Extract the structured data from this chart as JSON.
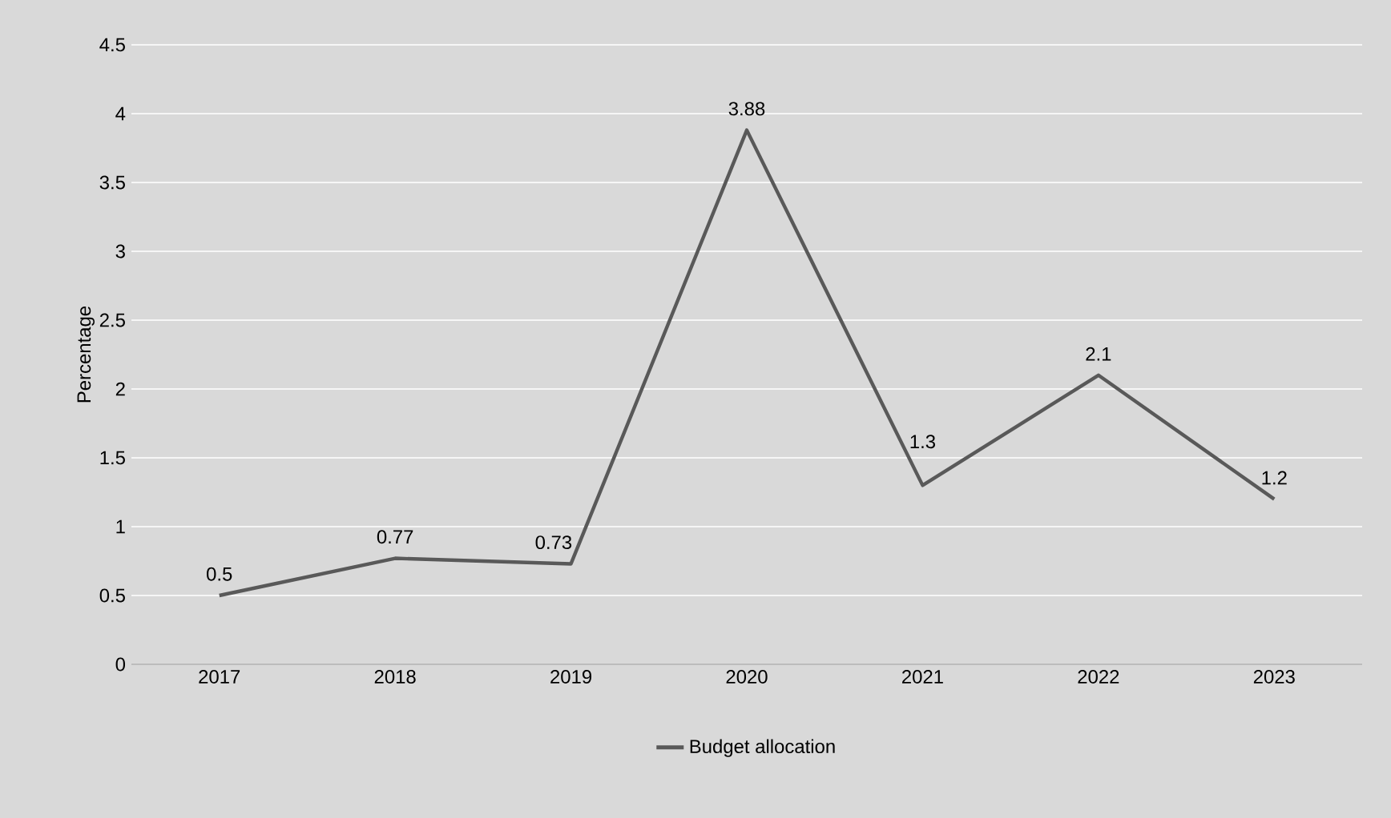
{
  "chart_data": {
    "type": "line",
    "ylabel": "Percentage",
    "categories": [
      "2017",
      "2018",
      "2019",
      "2020",
      "2021",
      "2022",
      "2023"
    ],
    "series": [
      {
        "name": "Budget allocation",
        "color": "#595959",
        "values": [
          0.5,
          0.77,
          0.73,
          3.88,
          1.3,
          2.1,
          1.2
        ]
      }
    ],
    "ylim": [
      0,
      4.5
    ],
    "yticks": [
      0,
      0.5,
      1,
      1.5,
      2,
      2.5,
      3,
      3.5,
      4,
      4.5
    ],
    "grid": "y",
    "legend": "bottom",
    "data_labels": true,
    "marker": "none",
    "line_style": "solid"
  }
}
